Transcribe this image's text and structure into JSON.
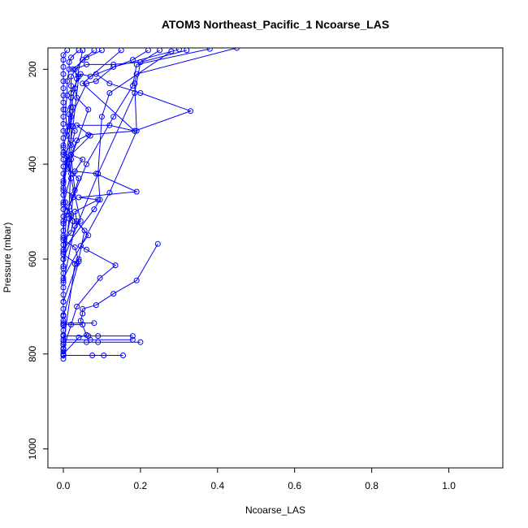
{
  "chart_data": {
    "type": "line",
    "title": "ATOM3 Northeast_Pacific_1 Ncoarse_LAS",
    "xlabel": "Ncoarse_LAS",
    "ylabel": "Pressure (mbar)",
    "xlim": [
      -0.04,
      1.14
    ],
    "ylim": [
      1040,
      155
    ],
    "y_reversed": true,
    "grid": false,
    "x_ticks": [
      0.0,
      0.2,
      0.4,
      0.6,
      0.8,
      1.0
    ],
    "x_tick_labels": [
      "0.0",
      "0.2",
      "0.4",
      "0.6",
      "0.8",
      "1.0"
    ],
    "y_ticks": [
      200,
      400,
      600,
      800,
      1000
    ],
    "y_tick_labels": [
      "200",
      "400",
      "600",
      "800",
      "1000"
    ],
    "series_color": "#0000FF",
    "series": [
      {
        "points": [
          [
            0.0,
            810
          ],
          [
            0.0,
            802
          ],
          [
            0.0,
            795
          ],
          [
            0.0,
            788
          ],
          [
            0.0,
            780
          ],
          [
            0.0,
            770
          ],
          [
            0.0,
            760
          ],
          [
            0.0,
            750
          ],
          [
            0.0,
            740
          ],
          [
            0.0,
            730
          ],
          [
            0.0,
            718
          ],
          [
            0.0,
            705
          ],
          [
            0.0,
            690
          ],
          [
            0.0,
            675
          ],
          [
            0.0,
            660
          ],
          [
            0.0,
            645
          ],
          [
            0.0,
            630
          ],
          [
            0.0,
            615
          ],
          [
            0.0,
            600
          ],
          [
            0.0,
            585
          ],
          [
            0.0,
            570
          ],
          [
            0.0,
            555
          ],
          [
            0.0,
            540
          ],
          [
            0.0,
            525
          ],
          [
            0.0,
            510
          ],
          [
            0.0,
            495
          ],
          [
            0.0,
            480
          ],
          [
            0.0,
            465
          ],
          [
            0.0,
            450
          ],
          [
            0.0,
            435
          ],
          [
            0.0,
            420
          ],
          [
            0.0,
            405
          ],
          [
            0.0,
            390
          ],
          [
            0.0,
            375
          ],
          [
            0.0,
            360
          ],
          [
            0.0,
            345
          ],
          [
            0.0,
            330
          ],
          [
            0.0,
            315
          ],
          [
            0.0,
            300
          ],
          [
            0.0,
            285
          ],
          [
            0.0,
            270
          ],
          [
            0.0,
            255
          ],
          [
            0.0,
            240
          ],
          [
            0.0,
            225
          ],
          [
            0.0,
            210
          ],
          [
            0.0,
            195
          ],
          [
            0.0,
            180
          ],
          [
            0.0,
            170
          ],
          [
            0.01,
            160
          ]
        ]
      },
      {
        "points": [
          [
            0.0,
            803
          ],
          [
            0.075,
            803
          ],
          [
            0.105,
            803
          ],
          [
            0.155,
            803
          ]
        ]
      },
      {
        "points": [
          [
            0.0,
            775
          ],
          [
            0.06,
            775
          ],
          [
            0.09,
            775
          ],
          [
            0.2,
            775
          ]
        ]
      },
      {
        "points": [
          [
            0.0,
            770
          ],
          [
            0.07,
            770
          ],
          [
            0.18,
            770
          ]
        ]
      },
      {
        "points": [
          [
            0.0,
            762
          ],
          [
            0.065,
            762
          ],
          [
            0.09,
            762
          ],
          [
            0.18,
            762
          ]
        ]
      },
      {
        "points": [
          [
            0.0,
            738
          ],
          [
            0.02,
            738
          ],
          [
            0.05,
            738
          ]
        ]
      },
      {
        "points": [
          [
            0.0,
            735
          ],
          [
            0.08,
            735
          ]
        ]
      },
      {
        "points": [
          [
            0.0,
            800
          ],
          [
            0.04,
            765
          ],
          [
            0.06,
            760
          ],
          [
            0.045,
            730
          ],
          [
            0.05,
            715
          ],
          [
            0.05,
            705
          ],
          [
            0.085,
            697
          ],
          [
            0.13,
            673
          ],
          [
            0.19,
            645
          ],
          [
            0.245,
            568
          ]
        ]
      },
      {
        "points": [
          [
            0.0,
            790
          ],
          [
            0.035,
            700
          ],
          [
            0.095,
            640
          ],
          [
            0.135,
            613
          ],
          [
            0.06,
            580
          ],
          [
            0.045,
            572
          ],
          [
            0.065,
            550
          ],
          [
            0.035,
            520
          ],
          [
            0.03,
            500
          ],
          [
            0.09,
            475
          ],
          [
            0.04,
            470
          ],
          [
            0.19,
            458
          ],
          [
            0.085,
            420
          ],
          [
            0.03,
            415
          ],
          [
            0.05,
            390
          ],
          [
            0.02,
            380
          ],
          [
            0.07,
            340
          ],
          [
            0.035,
            318
          ],
          [
            0.12,
            318
          ],
          [
            0.185,
            330
          ],
          [
            0.05,
            230
          ],
          [
            0.15,
            160
          ]
        ]
      },
      {
        "points": [
          [
            0.0,
            780
          ],
          [
            0.03,
            610
          ],
          [
            0.04,
            600
          ],
          [
            0.055,
            540
          ],
          [
            0.02,
            510
          ],
          [
            0.025,
            470
          ],
          [
            0.04,
            430
          ],
          [
            0.01,
            410
          ],
          [
            0.065,
            285
          ],
          [
            0.035,
            260
          ],
          [
            0.03,
            240
          ],
          [
            0.05,
            160
          ]
        ]
      },
      {
        "points": [
          [
            0.0,
            720
          ],
          [
            0.04,
            605
          ],
          [
            0.03,
            575
          ],
          [
            0.0,
            560
          ],
          [
            0.02,
            545
          ],
          [
            0.025,
            520
          ],
          [
            0.01,
            500
          ],
          [
            0.03,
            455
          ],
          [
            0.025,
            420
          ],
          [
            0.02,
            380
          ],
          [
            0.035,
            350
          ],
          [
            0.065,
            338
          ],
          [
            0.185,
            330
          ],
          [
            0.33,
            288
          ],
          [
            0.2,
            250
          ],
          [
            0.12,
            230
          ],
          [
            0.085,
            210
          ]
        ]
      },
      {
        "points": [
          [
            0.0,
            690
          ],
          [
            0.035,
            610
          ],
          [
            0.0,
            590
          ],
          [
            0.02,
            505
          ],
          [
            0.0,
            485
          ],
          [
            0.02,
            420
          ],
          [
            0.01,
            400
          ],
          [
            0.025,
            320
          ],
          [
            0.04,
            215
          ],
          [
            0.025,
            200
          ],
          [
            0.06,
            175
          ],
          [
            0.1,
            160
          ]
        ]
      },
      {
        "points": [
          [
            0.0,
            650
          ],
          [
            0.03,
            530
          ],
          [
            0.045,
            520
          ],
          [
            0.02,
            430
          ],
          [
            0.015,
            390
          ],
          [
            0.03,
            330
          ],
          [
            0.015,
            320
          ],
          [
            0.02,
            280
          ],
          [
            0.03,
            240
          ],
          [
            0.035,
            220
          ],
          [
            0.03,
            200
          ],
          [
            0.06,
            190
          ],
          [
            0.13,
            190
          ],
          [
            0.2,
            185
          ],
          [
            0.25,
            160
          ]
        ]
      },
      {
        "points": [
          [
            0.0,
            620
          ],
          [
            0.015,
            515
          ],
          [
            0.015,
            490
          ],
          [
            0.02,
            390
          ],
          [
            0.0,
            380
          ],
          [
            0.02,
            360
          ],
          [
            0.01,
            340
          ],
          [
            0.015,
            295
          ],
          [
            0.02,
            250
          ],
          [
            0.045,
            210
          ],
          [
            0.07,
            215
          ],
          [
            0.18,
            180
          ],
          [
            0.22,
            160
          ]
        ]
      },
      {
        "points": [
          [
            0.0,
            580
          ],
          [
            0.01,
            500
          ],
          [
            0.025,
            465
          ],
          [
            0.0,
            455
          ],
          [
            0.01,
            395
          ],
          [
            0.02,
            350
          ],
          [
            0.02,
            320
          ],
          [
            0.025,
            280
          ],
          [
            0.02,
            260
          ],
          [
            0.02,
            235
          ],
          [
            0.02,
            215
          ],
          [
            0.05,
            180
          ],
          [
            0.08,
            160
          ]
        ]
      },
      {
        "points": [
          [
            0.0,
            550
          ],
          [
            0.005,
            480
          ],
          [
            0.0,
            450
          ],
          [
            0.01,
            385
          ],
          [
            0.0,
            365
          ],
          [
            0.01,
            330
          ],
          [
            0.005,
            285
          ],
          [
            0.01,
            255
          ],
          [
            0.01,
            225
          ],
          [
            0.015,
            200
          ],
          [
            0.015,
            185
          ],
          [
            0.02,
            175
          ],
          [
            0.04,
            160
          ]
        ]
      },
      {
        "points": [
          [
            0.0,
            600
          ],
          [
            0.09,
            420
          ],
          [
            0.185,
            250
          ],
          [
            0.2,
            185
          ],
          [
            0.32,
            160
          ]
        ]
      },
      {
        "points": [
          [
            0.0,
            640
          ],
          [
            0.12,
            460
          ],
          [
            0.19,
            330
          ],
          [
            0.185,
            230
          ],
          [
            0.19,
            210
          ],
          [
            0.45,
            155
          ]
        ]
      },
      {
        "points": [
          [
            0.0,
            520
          ],
          [
            0.06,
            400
          ],
          [
            0.13,
            300
          ],
          [
            0.18,
            235
          ],
          [
            0.19,
            190
          ],
          [
            0.38,
            157
          ]
        ]
      },
      {
        "points": [
          [
            0.0,
            440
          ],
          [
            0.02,
            300
          ],
          [
            0.06,
            230
          ],
          [
            0.085,
            225
          ],
          [
            0.13,
            195
          ],
          [
            0.3,
            158
          ]
        ]
      },
      {
        "points": [
          [
            0.0,
            580
          ],
          [
            0.08,
            495
          ],
          [
            0.095,
            475
          ],
          [
            0.09,
            420
          ],
          [
            0.1,
            300
          ],
          [
            0.12,
            250
          ],
          [
            0.28,
            162
          ]
        ]
      }
    ]
  }
}
